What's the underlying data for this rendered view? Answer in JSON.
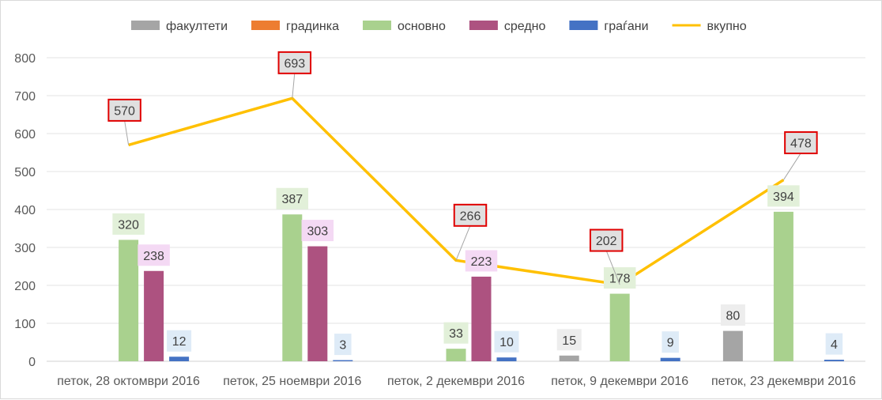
{
  "chart_data": {
    "type": "bar",
    "categories": [
      "петок, 28 октомври 2016",
      "петок, 25 ноември 2016",
      "петок, 2 декември 2016",
      "петок, 9 декември 2016",
      "петок, 23 декември 2016"
    ],
    "ylim": [
      0,
      800
    ],
    "yticks": [
      0,
      100,
      200,
      300,
      400,
      500,
      600,
      700,
      800
    ],
    "grid": true,
    "legend_position": "top",
    "series": [
      {
        "name": "факултети",
        "kind": "bar",
        "color": "#a5a5a5",
        "label_bg": "#ededed",
        "values": [
          null,
          null,
          null,
          15,
          80
        ]
      },
      {
        "name": "градинка",
        "kind": "bar",
        "color": "#ed7d31",
        "label_bg": "#fbe5d6",
        "values": [
          null,
          null,
          null,
          null,
          null
        ]
      },
      {
        "name": "основно",
        "kind": "bar",
        "color": "#a9d18e",
        "label_bg": "#e2f0d9",
        "values": [
          320,
          387,
          33,
          178,
          394
        ]
      },
      {
        "name": "средно",
        "kind": "bar",
        "color": "#ad5280",
        "label_bg": "#f4d9f4",
        "values": [
          238,
          303,
          223,
          null,
          null
        ]
      },
      {
        "name": "граѓани",
        "kind": "bar",
        "color": "#4472c4",
        "label_bg": "#deebf7",
        "values": [
          12,
          3,
          10,
          9,
          4
        ]
      },
      {
        "name": "вкупно",
        "kind": "line",
        "color": "#ffc000",
        "label_border": "#e00000",
        "label_bg": "#e0e0e0",
        "values": [
          570,
          693,
          266,
          202,
          478
        ]
      }
    ]
  }
}
